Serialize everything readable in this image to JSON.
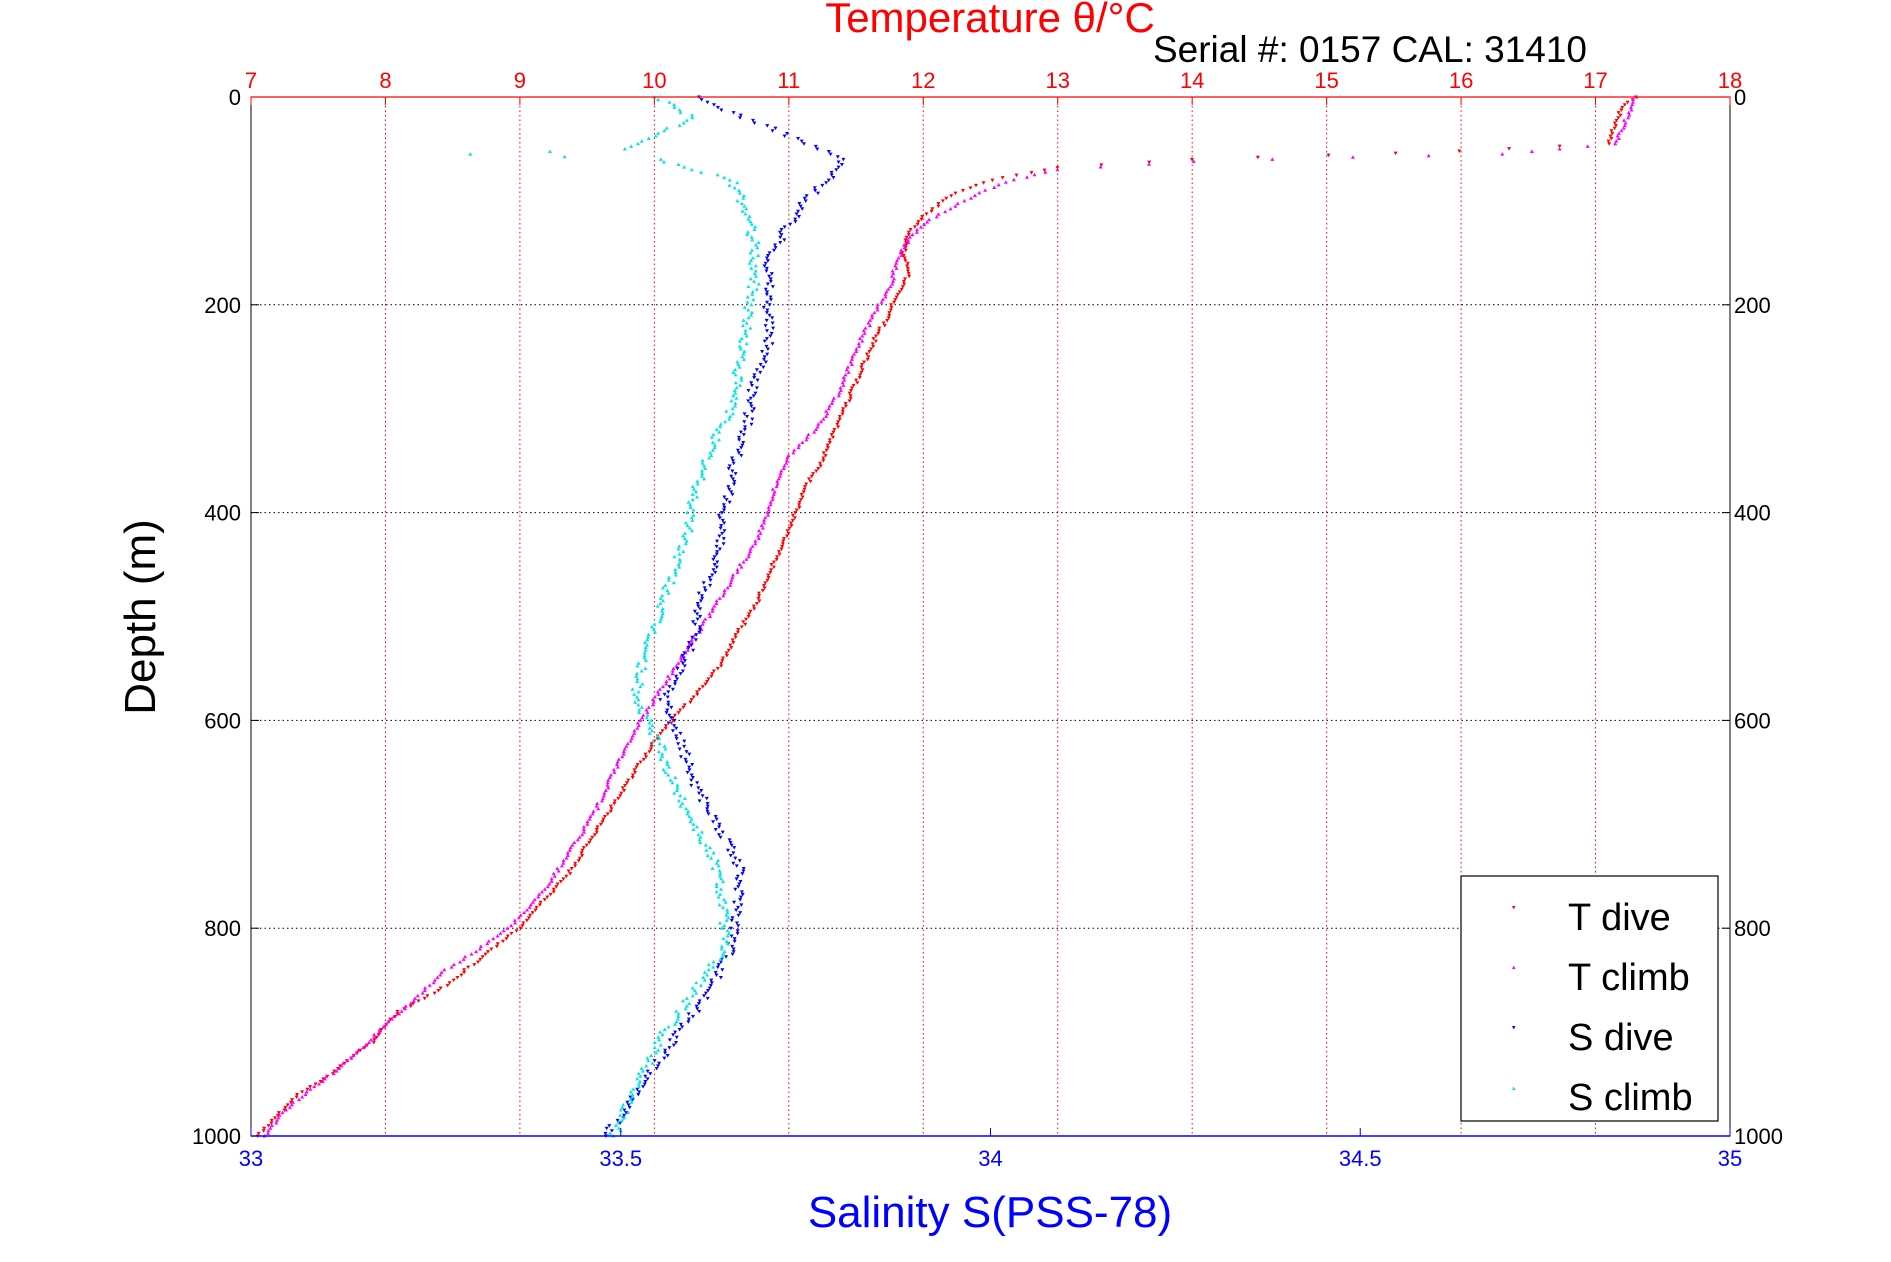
{
  "chart_data": {
    "type": "scatter",
    "title": "Temperature θ/°C",
    "subtitle": "Serial #: 0157  CAL: 31410",
    "ylabel": "Depth (m)",
    "xlabel": "Salinity S(PSS-78)",
    "y_reversed": true,
    "ylim": [
      0,
      1000
    ],
    "yticks": [
      0,
      200,
      400,
      600,
      800,
      1000
    ],
    "top_axis": {
      "xlim": [
        7,
        18
      ],
      "ticks": [
        7,
        8,
        9,
        10,
        11,
        12,
        13,
        14,
        15,
        16,
        17,
        18
      ],
      "color": "#ff0000",
      "grid": "dotted"
    },
    "bottom_axis": {
      "xlim": [
        33,
        35
      ],
      "ticks": [
        33,
        33.5,
        34,
        34.5,
        35
      ],
      "color": "#0000ff"
    },
    "grid": true,
    "legend": {
      "placement": "bottom-right",
      "entries": [
        "T dive",
        "T climb",
        "S dive",
        "S climb"
      ]
    },
    "series": [
      {
        "name": "T dive",
        "axis": "temperature",
        "color": "#ff0000",
        "marker": "triangle-down",
        "points": [
          [
            17.3,
            0
          ],
          [
            17.2,
            10
          ],
          [
            17.15,
            25
          ],
          [
            17.1,
            45
          ],
          [
            16.0,
            52
          ],
          [
            15.0,
            56
          ],
          [
            14.0,
            60
          ],
          [
            13.0,
            68
          ],
          [
            12.5,
            80
          ],
          [
            12.2,
            95
          ],
          [
            12.0,
            115
          ],
          [
            11.9,
            130
          ],
          [
            11.85,
            150
          ],
          [
            11.9,
            170
          ],
          [
            11.8,
            190
          ],
          [
            11.75,
            210
          ],
          [
            11.65,
            230
          ],
          [
            11.55,
            260
          ],
          [
            11.45,
            290
          ],
          [
            11.35,
            320
          ],
          [
            11.25,
            350
          ],
          [
            11.15,
            370
          ],
          [
            11.05,
            400
          ],
          [
            10.95,
            430
          ],
          [
            10.85,
            460
          ],
          [
            10.75,
            490
          ],
          [
            10.6,
            520
          ],
          [
            10.5,
            545
          ],
          [
            10.35,
            570
          ],
          [
            10.2,
            590
          ],
          [
            10.0,
            620
          ],
          [
            9.85,
            650
          ],
          [
            9.7,
            680
          ],
          [
            9.5,
            720
          ],
          [
            9.35,
            750
          ],
          [
            9.2,
            770
          ],
          [
            9.0,
            800
          ],
          [
            8.7,
            830
          ],
          [
            8.4,
            860
          ],
          [
            8.1,
            880
          ],
          [
            7.9,
            910
          ],
          [
            7.6,
            940
          ],
          [
            7.35,
            960
          ],
          [
            7.2,
            980
          ],
          [
            7.05,
            1000
          ]
        ]
      },
      {
        "name": "T climb",
        "axis": "temperature",
        "color": "#ff00ff",
        "marker": "triangle-up",
        "points": [
          [
            17.3,
            0
          ],
          [
            17.25,
            15
          ],
          [
            17.2,
            30
          ],
          [
            17.15,
            45
          ],
          [
            16.3,
            55
          ],
          [
            15.2,
            58
          ],
          [
            14.0,
            62
          ],
          [
            13.0,
            70
          ],
          [
            12.6,
            82
          ],
          [
            12.3,
            100
          ],
          [
            12.05,
            118
          ],
          [
            11.9,
            135
          ],
          [
            11.8,
            160
          ],
          [
            11.75,
            185
          ],
          [
            11.65,
            205
          ],
          [
            11.55,
            230
          ],
          [
            11.45,
            260
          ],
          [
            11.35,
            290
          ],
          [
            11.2,
            320
          ],
          [
            11.0,
            345
          ],
          [
            10.9,
            375
          ],
          [
            10.85,
            400
          ],
          [
            10.75,
            430
          ],
          [
            10.6,
            460
          ],
          [
            10.45,
            490
          ],
          [
            10.3,
            520
          ],
          [
            10.15,
            550
          ],
          [
            10.0,
            580
          ],
          [
            9.85,
            610
          ],
          [
            9.7,
            650
          ],
          [
            9.55,
            690
          ],
          [
            9.4,
            720
          ],
          [
            9.2,
            760
          ],
          [
            9.0,
            790
          ],
          [
            8.75,
            815
          ],
          [
            8.45,
            840
          ],
          [
            8.2,
            870
          ],
          [
            7.95,
            900
          ],
          [
            7.7,
            930
          ],
          [
            7.45,
            955
          ],
          [
            7.25,
            975
          ],
          [
            7.1,
            1000
          ]
        ]
      },
      {
        "name": "S dive",
        "axis": "salinity",
        "color": "#0000ff",
        "marker": "triangle-down",
        "points": [
          [
            33.6,
            0
          ],
          [
            33.65,
            15
          ],
          [
            33.72,
            35
          ],
          [
            33.8,
            60
          ],
          [
            33.78,
            80
          ],
          [
            33.75,
            100
          ],
          [
            33.72,
            130
          ],
          [
            33.7,
            160
          ],
          [
            33.7,
            200
          ],
          [
            33.7,
            240
          ],
          [
            33.68,
            280
          ],
          [
            33.67,
            320
          ],
          [
            33.65,
            360
          ],
          [
            33.64,
            400
          ],
          [
            33.63,
            440
          ],
          [
            33.61,
            480
          ],
          [
            33.6,
            520
          ],
          [
            33.58,
            550
          ],
          [
            33.56,
            580
          ],
          [
            33.58,
            620
          ],
          [
            33.6,
            660
          ],
          [
            33.63,
            700
          ],
          [
            33.66,
            740
          ],
          [
            33.66,
            780
          ],
          [
            33.65,
            820
          ],
          [
            33.62,
            860
          ],
          [
            33.58,
            900
          ],
          [
            33.55,
            930
          ],
          [
            33.52,
            960
          ],
          [
            33.5,
            980
          ],
          [
            33.48,
            1000
          ]
        ]
      },
      {
        "name": "S climb",
        "axis": "salinity",
        "color": "#00e5e5",
        "marker": "triangle-up",
        "points": [
          [
            33.55,
            0
          ],
          [
            33.6,
            20
          ],
          [
            33.5,
            50
          ],
          [
            33.3,
            55
          ],
          [
            33.55,
            60
          ],
          [
            33.65,
            80
          ],
          [
            33.67,
            110
          ],
          [
            33.68,
            140
          ],
          [
            33.68,
            180
          ],
          [
            33.67,
            220
          ],
          [
            33.66,
            260
          ],
          [
            33.65,
            300
          ],
          [
            33.62,
            340
          ],
          [
            33.6,
            380
          ],
          [
            33.59,
            420
          ],
          [
            33.57,
            460
          ],
          [
            33.55,
            500
          ],
          [
            33.53,
            540
          ],
          [
            33.52,
            580
          ],
          [
            33.55,
            620
          ],
          [
            33.57,
            660
          ],
          [
            33.6,
            700
          ],
          [
            33.63,
            740
          ],
          [
            33.64,
            780
          ],
          [
            33.64,
            820
          ],
          [
            33.6,
            860
          ],
          [
            33.56,
            900
          ],
          [
            33.53,
            940
          ],
          [
            33.51,
            970
          ],
          [
            33.49,
            1000
          ]
        ]
      }
    ]
  }
}
